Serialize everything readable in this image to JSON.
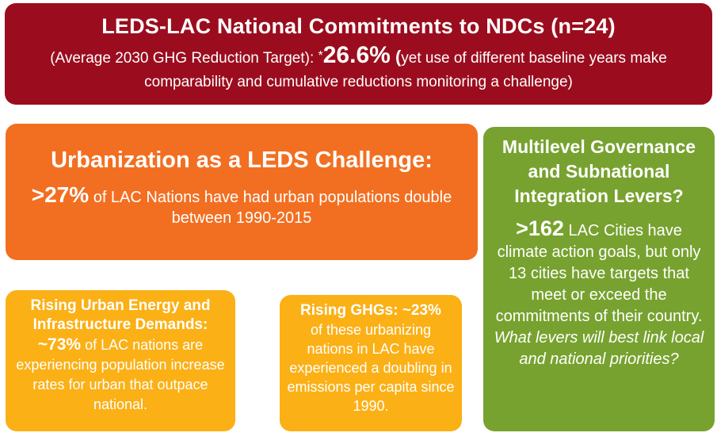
{
  "header": {
    "title": "LEDS-LAC National Commitments to NDCs (n=24)",
    "line_prefix": "(Average 2030 GHG Reduction Target): ",
    "star": "*",
    "target_value": "26.6%",
    "open_paren": " (",
    "line_suffix": "yet use of different baseline years make comparability and cumulative reductions monitoring a challenge)"
  },
  "urbanization": {
    "title": "Urbanization as a LEDS Challenge:",
    "stat": ">27%",
    "text": " of LAC Nations have had urban populations double between 1990-2015"
  },
  "governance": {
    "title": "Multilevel Governance and Subnational Integration Levers?",
    "stat": ">162",
    "text": " LAC Cities have climate action goals, but only 13 cities have targets that meet or exceed the commitments of their country. ",
    "question": "What levers will best link local and national priorities?"
  },
  "energy": {
    "title": "Rising Urban Energy  and Infrastructure Demands:",
    "stat": "~73%",
    "text": " of LAC nations are experiencing population increase rates for urban that outpace national."
  },
  "ghg": {
    "title": "Rising GHGs:  ~23%",
    "text": "of these urbanizing nations in LAC have experienced a doubling in emissions per capita since 1990."
  },
  "colors": {
    "header_bg": "#9b0d1e",
    "urban_bg": "#f26f21",
    "governance_bg": "#77a22f",
    "yellow_bg": "#fbb016",
    "text": "#ffffff"
  }
}
